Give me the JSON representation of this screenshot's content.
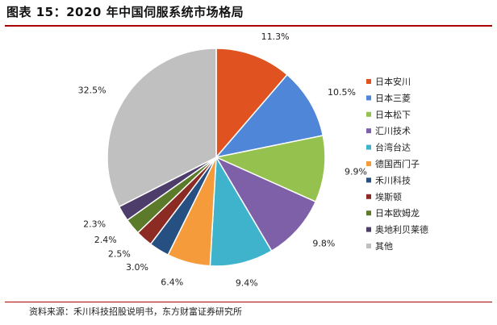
{
  "header": {
    "title": "图表 15：2020 年中国伺服系统市场格局"
  },
  "footer": {
    "source": "资料来源：禾川科技招股说明书，东方财富证券研究所"
  },
  "chart_data": {
    "type": "pie",
    "title": "",
    "legend_position": "right",
    "series": [
      {
        "name": "日本安川",
        "value": 11.3,
        "label": "11.3%",
        "color": "#e0521f"
      },
      {
        "name": "日本三菱",
        "value": 10.5,
        "label": "10.5%",
        "color": "#4f86d8"
      },
      {
        "name": "日本松下",
        "value": 9.9,
        "label": "9.9%",
        "color": "#95c14f"
      },
      {
        "name": "汇川技术",
        "value": 9.8,
        "label": "9.8%",
        "color": "#7d60a8"
      },
      {
        "name": "台湾台达",
        "value": 9.4,
        "label": "9.4%",
        "color": "#3fb3cc"
      },
      {
        "name": "德国西门子",
        "value": 6.4,
        "label": "6.4%",
        "color": "#f59b3c"
      },
      {
        "name": "禾川科技",
        "value": 3.0,
        "label": "3.0%",
        "color": "#264f82"
      },
      {
        "name": "埃斯顿",
        "value": 2.5,
        "label": "2.5%",
        "color": "#8c2a24"
      },
      {
        "name": "日本欧姆龙",
        "value": 2.4,
        "label": "2.4%",
        "color": "#5b7a2a"
      },
      {
        "name": "奥地利贝莱德",
        "value": 2.3,
        "label": "2.3%",
        "color": "#4c3d6b"
      },
      {
        "name": "其他",
        "value": 32.5,
        "label": "32.5%",
        "color": "#c0c0c0"
      }
    ]
  }
}
